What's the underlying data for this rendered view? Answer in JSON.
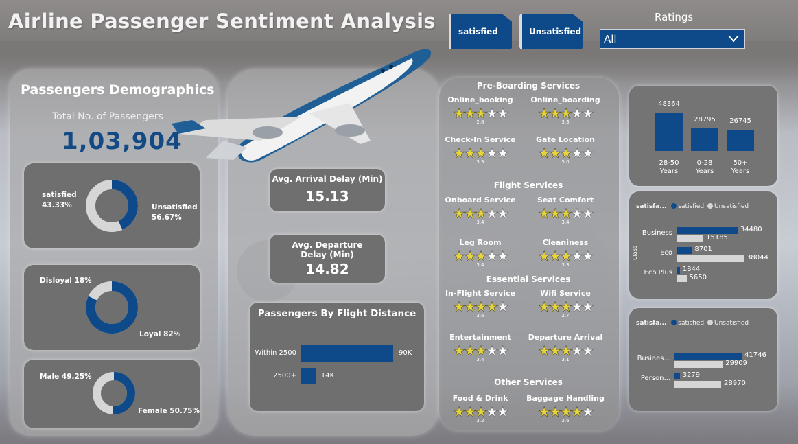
{
  "title": "Airline Passenger Sentiment Analysis",
  "slicers": {
    "satisfied": "satisfied",
    "unsatisfied": "Unsatisfied"
  },
  "ratings": {
    "label": "Ratings",
    "selected": "All"
  },
  "colors": {
    "primary": "#0e4a8a",
    "secondary": "#d6d6d6",
    "star": "#e8d43c"
  },
  "demographics": {
    "title": "Passengers Demographics",
    "total_label": "Total No. of Passengers",
    "total_value": "1,03,904",
    "satisfaction": {
      "a_label": "satisfied",
      "a_pct": "43.33%",
      "a_value": 43.33,
      "b_label": "Unsatisfied",
      "b_pct": "56.67%",
      "b_value": 56.67
    },
    "loyalty": {
      "a_label": "Disloyal 18%",
      "a_value": 18,
      "b_label": "Loyal 82%",
      "b_value": 82
    },
    "gender": {
      "a_label": "Male 49.25%",
      "a_value": 49.25,
      "b_label": "Female 50.75%",
      "b_value": 50.75
    }
  },
  "kpis": {
    "arrival": {
      "label": "Avg. Arrival Delay (Min)",
      "value": "15.13"
    },
    "departure": {
      "label": "Avg. Departure Delay (Min)",
      "value": "14.82"
    }
  },
  "distance_chart": {
    "title": "Passengers By Flight Distance",
    "bars": [
      {
        "label": "Within 2500",
        "value": 90,
        "text": "90K"
      },
      {
        "label": "2500+",
        "value": 14,
        "text": "14K"
      }
    ]
  },
  "services": {
    "groups": [
      {
        "heading": "Pre-Boarding Services",
        "items": [
          {
            "name": "Online_booking",
            "score": "2.8",
            "stars": 2.8
          },
          {
            "name": "Online_boarding",
            "score": "3.3",
            "stars": 3.3
          },
          {
            "name": "Check-In Service",
            "score": "3.3",
            "stars": 3.3
          },
          {
            "name": "Gate Location",
            "score": "3.0",
            "stars": 3.0
          }
        ]
      },
      {
        "heading": "Flight Services",
        "items": [
          {
            "name": "Onboard Service",
            "score": "3.4",
            "stars": 3.4
          },
          {
            "name": "Seat Comfort",
            "score": "3.4",
            "stars": 3.4
          },
          {
            "name": "Leg Room",
            "score": "3.4",
            "stars": 3.4
          },
          {
            "name": "Cleaniness",
            "score": "3.3",
            "stars": 3.3
          }
        ]
      },
      {
        "heading": "Essential Services",
        "items": [
          {
            "name": "In-Flight Service",
            "score": "3.6",
            "stars": 3.6
          },
          {
            "name": "Wifi Service",
            "score": "2.7",
            "stars": 2.7
          },
          {
            "name": "Entertainment",
            "score": "3.4",
            "stars": 3.4
          },
          {
            "name": "Departure Arrival",
            "score": "3.1",
            "stars": 3.1
          }
        ]
      },
      {
        "heading": "Other Services",
        "items": [
          {
            "name": "Food & Drink",
            "score": "3.2",
            "stars": 3.2
          },
          {
            "name": "Baggage Handling",
            "score": "3.6",
            "stars": 3.6
          }
        ]
      }
    ]
  },
  "chart_data": [
    {
      "type": "bar",
      "categories": [
        "28-50 Years",
        "0-28 Years",
        "50+ Years"
      ],
      "category_lines": [
        [
          "28-50",
          "Years"
        ],
        [
          "0-28",
          "Years"
        ],
        [
          "50+",
          "Years"
        ]
      ],
      "values": [
        48364,
        28795,
        26745
      ]
    },
    {
      "type": "bar",
      "orientation": "horizontal",
      "legend_title": "satisfa...",
      "ylabel": "Class",
      "categories": [
        "Business",
        "Eco",
        "Eco Plus"
      ],
      "series": [
        {
          "name": "satisfied",
          "values": [
            34480,
            8701,
            1844
          ]
        },
        {
          "name": "Unsatisfied",
          "values": [
            15185,
            38044,
            5650
          ]
        }
      ]
    },
    {
      "type": "bar",
      "orientation": "horizontal",
      "legend_title": "satisfa...",
      "categories": [
        "Busines...",
        "Person..."
      ],
      "series": [
        {
          "name": "satisfied",
          "values": [
            41746,
            3279
          ]
        },
        {
          "name": "Unsatisfied",
          "values": [
            29909,
            28970
          ]
        }
      ]
    }
  ]
}
